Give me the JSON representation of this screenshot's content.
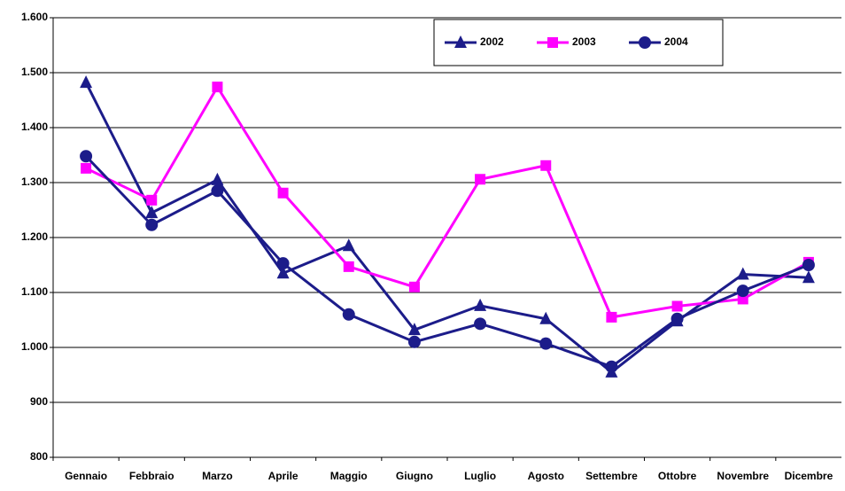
{
  "chart_data": {
    "type": "line",
    "categories": [
      "Gennaio",
      "Febbraio",
      "Marzo",
      "Aprile",
      "Maggio",
      "Giugno",
      "Luglio",
      "Agosto",
      "Settembre",
      "Ottobre",
      "Novembre",
      "Dicembre"
    ],
    "series": [
      {
        "name": "2002",
        "color": "#1c1c8a",
        "marker": "triangle",
        "values": [
          1482,
          1245,
          1305,
          1135,
          1185,
          1032,
          1076,
          1052,
          955,
          1048,
          1133,
          1127
        ]
      },
      {
        "name": "2003",
        "color": "#ff00ff",
        "marker": "square",
        "values": [
          1326,
          1268,
          1474,
          1281,
          1147,
          1110,
          1306,
          1331,
          1055,
          1075,
          1088,
          1155
        ]
      },
      {
        "name": "2004",
        "color": "#1c1c8a",
        "marker": "circle",
        "values": [
          1348,
          1223,
          1285,
          1153,
          1060,
          1010,
          1043,
          1007,
          965,
          1052,
          1103,
          1150
        ]
      }
    ],
    "ylim": [
      800,
      1600
    ],
    "yticks": [
      800,
      900,
      {
        "value": 1000,
        "label": "1.000"
      },
      {
        "value": 1100,
        "label": "1.100"
      },
      {
        "value": 1200,
        "label": "1.200"
      },
      {
        "value": 1300,
        "label": "1.300"
      },
      {
        "value": 1400,
        "label": "1.400"
      },
      {
        "value": 1500,
        "label": "1.500"
      },
      {
        "value": 1600,
        "label": "1.600"
      }
    ],
    "grid": true,
    "legend": "top-right"
  }
}
